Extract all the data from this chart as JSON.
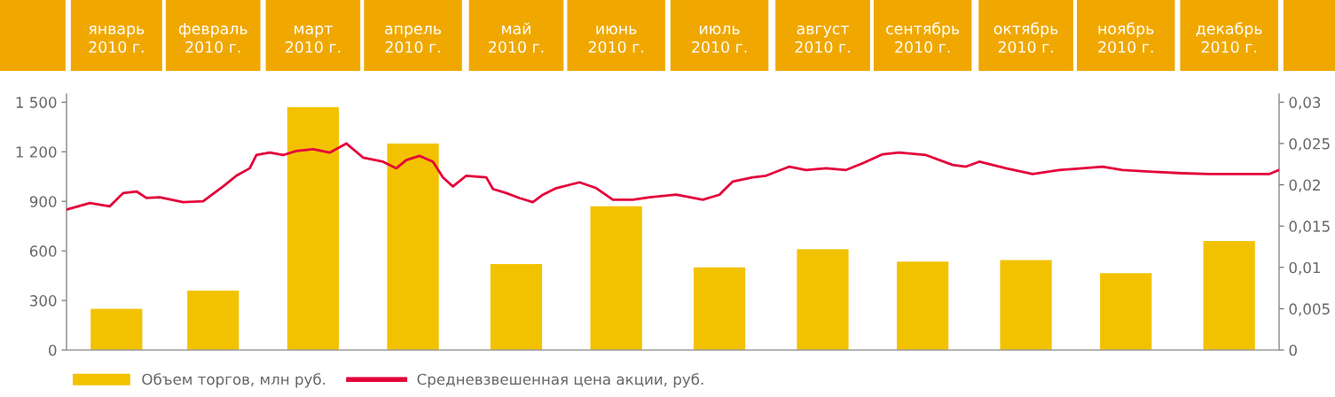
{
  "chart_data": {
    "type": "bar",
    "x": [
      "2010-01-16",
      "2010-02-14",
      "2010-03-16",
      "2010-04-15",
      "2010-05-16",
      "2010-06-15",
      "2010-07-16",
      "2010-08-16",
      "2010-09-15",
      "2010-10-16",
      "2010-11-15",
      "2010-12-16"
    ],
    "xlim": [
      "2010-01-01",
      "2010-12-31"
    ],
    "xticks": [
      {
        "value": "2010-01-16",
        "label": "январь 2010 г."
      },
      {
        "value": "2010-02-14",
        "label": "февраль 2010 г."
      },
      {
        "value": "2010-03-16",
        "label": "март 2010 г."
      },
      {
        "value": "2010-04-15",
        "label": "апрель 2010 г."
      },
      {
        "value": "2010-05-16",
        "label": "май 2010 г."
      },
      {
        "value": "2010-06-15",
        "label": "июнь 2010 г."
      },
      {
        "value": "2010-07-16",
        "label": "июль 2010 г."
      },
      {
        "value": "2010-08-16",
        "label": "август 2010 г."
      },
      {
        "value": "2010-09-15",
        "label": "сентябрь 2010 г."
      },
      {
        "value": "2010-10-16",
        "label": "октябрь 2010 г."
      },
      {
        "value": "2010-11-15",
        "label": "ноябрь 2010 г."
      },
      {
        "value": "2010-12-16",
        "label": "декабрь 2010 г."
      }
    ],
    "series": [
      {
        "name": "Объем торгов, млн руб.",
        "color": "#f2c200",
        "values": [
          250,
          360,
          1470,
          1250,
          520,
          870,
          500,
          610,
          535,
          545,
          465,
          660
        ]
      },
      {
        "name": "Средневзвешенная цена акции, руб.",
        "type": "line",
        "axis": "y2",
        "color": "#e4003a",
        "x": [
          "2010-01-01",
          "2010-01-08",
          "2010-01-14",
          "2010-01-18",
          "2010-01-22",
          "2010-01-25",
          "2010-01-29",
          "2010-02-05",
          "2010-02-11",
          "2010-02-17",
          "2010-02-21",
          "2010-02-25",
          "2010-02-27",
          "2010-03-03",
          "2010-03-07",
          "2010-03-11",
          "2010-03-16",
          "2010-03-21",
          "2010-03-26",
          "2010-03-31",
          "2010-04-06",
          "2010-04-10",
          "2010-04-13",
          "2010-04-17",
          "2010-04-21",
          "2010-04-24",
          "2010-04-27",
          "2010-05-01",
          "2010-05-07",
          "2010-05-09",
          "2010-05-13",
          "2010-05-17",
          "2010-05-21",
          "2010-05-24",
          "2010-05-28",
          "2010-06-04",
          "2010-06-09",
          "2010-06-14",
          "2010-06-20",
          "2010-06-25",
          "2010-07-03",
          "2010-07-11",
          "2010-07-16",
          "2010-07-20",
          "2010-07-26",
          "2010-07-30",
          "2010-08-06",
          "2010-08-11",
          "2010-08-17",
          "2010-08-23",
          "2010-08-28",
          "2010-09-03",
          "2010-09-08",
          "2010-09-16",
          "2010-09-24",
          "2010-09-28",
          "2010-10-02",
          "2010-10-10",
          "2010-10-18",
          "2010-10-26",
          "2010-11-02",
          "2010-11-08",
          "2010-11-14",
          "2010-11-22",
          "2010-12-02",
          "2010-12-10",
          "2010-12-21",
          "2010-12-28",
          "2010-12-31"
        ],
        "values": [
          0.017,
          0.0178,
          0.0174,
          0.019,
          0.0192,
          0.0184,
          0.0185,
          0.0179,
          0.018,
          0.0198,
          0.0211,
          0.022,
          0.0236,
          0.0239,
          0.0236,
          0.0241,
          0.0243,
          0.0239,
          0.025,
          0.0233,
          0.0228,
          0.022,
          0.023,
          0.0235,
          0.0228,
          0.0209,
          0.0198,
          0.0211,
          0.0209,
          0.0195,
          0.019,
          0.0184,
          0.0179,
          0.0188,
          0.0196,
          0.0203,
          0.0196,
          0.0182,
          0.0182,
          0.0185,
          0.0188,
          0.0182,
          0.0188,
          0.0204,
          0.0209,
          0.0211,
          0.0222,
          0.0218,
          0.022,
          0.0218,
          0.0226,
          0.0237,
          0.0239,
          0.0236,
          0.0224,
          0.0222,
          0.0228,
          0.022,
          0.0213,
          0.0218,
          0.022,
          0.0222,
          0.0218,
          0.0216,
          0.0214,
          0.0213,
          0.0213,
          0.0213,
          0.0218
        ]
      }
    ],
    "ylim": [
      0,
      1550
    ],
    "yticks": [
      0,
      300,
      600,
      900,
      {
        "value": 1200,
        "label": "1 200"
      },
      {
        "value": 1500,
        "label": "1 500"
      }
    ],
    "y2lim": [
      0,
      0.031
    ],
    "y2ticks": [
      {
        "value": 0,
        "label": "0"
      },
      {
        "value": 0.005,
        "label": "0,005"
      },
      {
        "value": 0.01,
        "label": "0,01"
      },
      {
        "value": 0.015,
        "label": "0,015"
      },
      {
        "value": 0.02,
        "label": "0,02"
      },
      {
        "value": 0.025,
        "label": "0,025"
      },
      {
        "value": 0.03,
        "label": "0,03"
      }
    ],
    "grid": false,
    "legend": "bottom left",
    "marker": "none",
    "line_style": "solid"
  }
}
